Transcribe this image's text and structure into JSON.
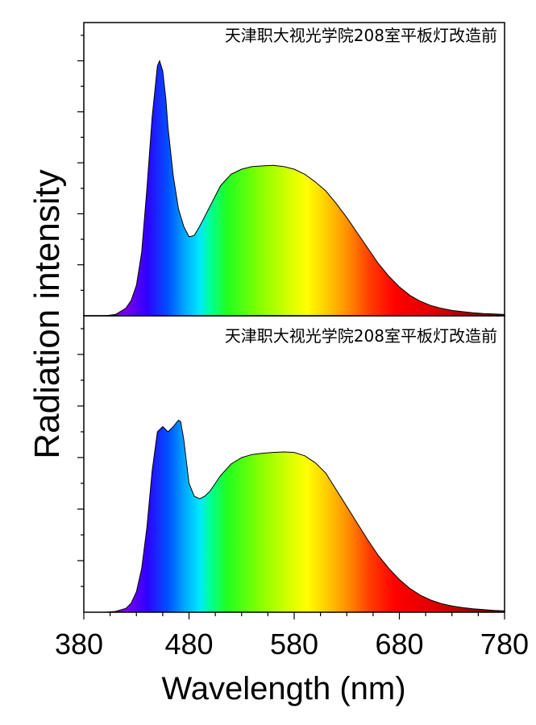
{
  "figure": {
    "ylabel": "Radiation intensity",
    "xlabel": "Wavelength (nm)"
  },
  "chart_data": [
    {
      "type": "area",
      "title": "天津职大视光学院208室平板灯改造前",
      "xlabel": "Wavelength (nm)",
      "ylabel": "Radiation intensity",
      "xlim": [
        380,
        780
      ],
      "ylim": [
        0,
        1.15
      ],
      "fill": "visible-spectrum",
      "x": [
        380,
        390,
        400,
        410,
        420,
        425,
        430,
        435,
        440,
        445,
        450,
        452,
        455,
        458,
        460,
        465,
        470,
        475,
        480,
        485,
        490,
        500,
        510,
        520,
        530,
        540,
        550,
        560,
        570,
        580,
        590,
        600,
        610,
        620,
        630,
        640,
        650,
        660,
        670,
        680,
        690,
        700,
        710,
        720,
        730,
        740,
        750,
        760,
        770,
        780
      ],
      "y": [
        0.0,
        0.0,
        0.0,
        0.005,
        0.03,
        0.06,
        0.12,
        0.25,
        0.5,
        0.78,
        0.98,
        1.0,
        0.96,
        0.85,
        0.74,
        0.55,
        0.42,
        0.35,
        0.31,
        0.315,
        0.35,
        0.43,
        0.51,
        0.555,
        0.575,
        0.585,
        0.588,
        0.59,
        0.585,
        0.575,
        0.555,
        0.525,
        0.49,
        0.44,
        0.385,
        0.325,
        0.265,
        0.205,
        0.155,
        0.113,
        0.08,
        0.057,
        0.04,
        0.029,
        0.021,
        0.016,
        0.012,
        0.009,
        0.007,
        0.005
      ]
    },
    {
      "type": "area",
      "title": "天津职大视光学院208室平板灯改造前",
      "xlabel": "Wavelength (nm)",
      "ylabel": "Radiation intensity",
      "xlim": [
        380,
        780
      ],
      "ylim": [
        0,
        1.15
      ],
      "fill": "visible-spectrum",
      "x": [
        380,
        390,
        400,
        410,
        420,
        425,
        430,
        435,
        440,
        445,
        450,
        455,
        460,
        465,
        470,
        472,
        475,
        480,
        485,
        490,
        495,
        500,
        510,
        520,
        530,
        540,
        550,
        560,
        570,
        580,
        590,
        600,
        610,
        620,
        630,
        640,
        650,
        660,
        670,
        680,
        690,
        700,
        710,
        720,
        730,
        740,
        750,
        760,
        770,
        780
      ],
      "y": [
        0.0,
        0.0,
        0.0,
        0.003,
        0.015,
        0.035,
        0.08,
        0.17,
        0.33,
        0.55,
        0.7,
        0.72,
        0.7,
        0.72,
        0.745,
        0.74,
        0.67,
        0.5,
        0.45,
        0.44,
        0.45,
        0.47,
        0.53,
        0.575,
        0.6,
        0.612,
        0.617,
        0.62,
        0.622,
        0.62,
        0.607,
        0.58,
        0.54,
        0.475,
        0.41,
        0.345,
        0.28,
        0.22,
        0.17,
        0.127,
        0.092,
        0.066,
        0.047,
        0.033,
        0.024,
        0.018,
        0.013,
        0.01,
        0.007,
        0.005
      ]
    }
  ]
}
